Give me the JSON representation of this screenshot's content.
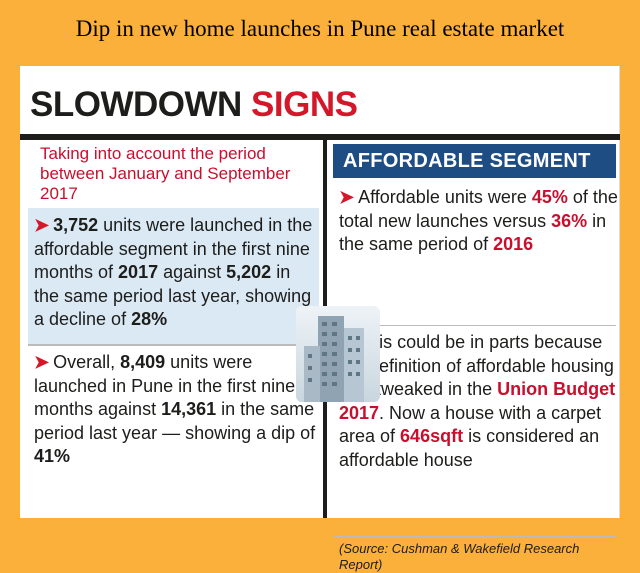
{
  "banner": {
    "title": "Dip in new home launches in Pune real estate market"
  },
  "headline": {
    "word1": "SLOWDOWN",
    "word2": "SIGNS"
  },
  "left": {
    "intro": "Taking into account the period between January and September 2017",
    "p1": {
      "units": "3,752",
      "text_a": " units were launched in the affordable segment in the first nine months of ",
      "year": "2017",
      "text_b": " against ",
      "prev": "5,202",
      "text_c": " in the same period last year, showing a decline of ",
      "pct": "28%"
    },
    "p2": {
      "text_a": "Overall, ",
      "units": "8,409",
      "text_b": " units were launched in Pune in the first nine months against ",
      "prev": "14,361",
      "text_c": " in the same period last year — showing a dip of ",
      "pct": "41%"
    }
  },
  "right": {
    "heading": "AFFORDABLE SEGMENT",
    "p1": {
      "text_a": "Affordable units were ",
      "pct1": "45%",
      "text_b": " of the total new launches versus ",
      "pct2": "36%",
      "text_c": " in the same period of ",
      "year": "2016"
    },
    "p2": {
      "text_a": "This could be in parts because the definition of affordable housing was tweaked in the ",
      "budget": "Union Budget 2017",
      "text_b": ". Now a house with a carpet area of ",
      "area": "646sqft",
      "text_c": " is considered an affordable house"
    },
    "source": "(Source: Cushman & Wakefield Research Report)"
  },
  "colors": {
    "background": "#fbb03b",
    "accent_red": "#d4182a",
    "heading_blue": "#1e4d84",
    "box_blue": "#dbe9f5"
  },
  "icons": {
    "bullet": "arrow-bullet-icon",
    "illustration": "building-icon"
  }
}
